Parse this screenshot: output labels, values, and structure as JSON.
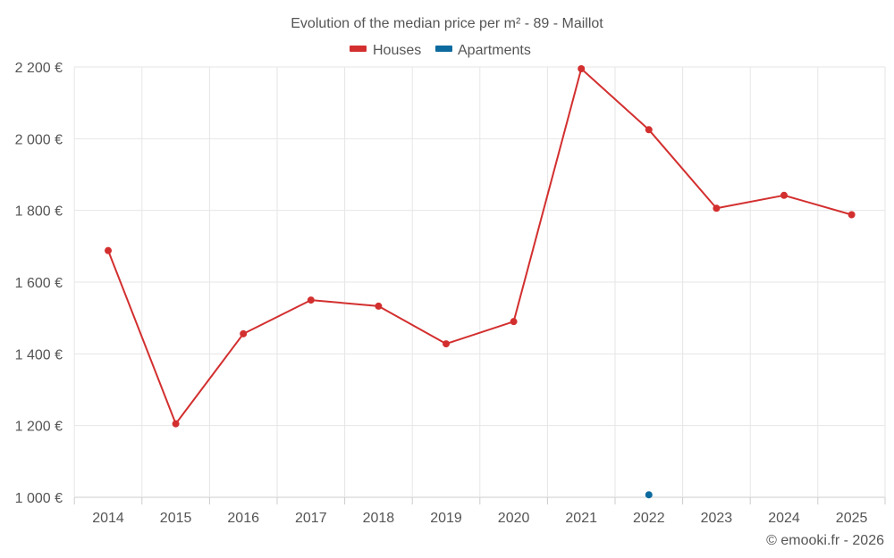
{
  "chart_data": {
    "type": "line",
    "title": "Evolution of the median price per m² - 89 - Maillot",
    "categories": [
      "2014",
      "2015",
      "2016",
      "2017",
      "2018",
      "2019",
      "2020",
      "2021",
      "2022",
      "2023",
      "2024",
      "2025"
    ],
    "ylim": [
      1000,
      2200
    ],
    "yticks": [
      1000,
      1200,
      1400,
      1600,
      1800,
      2000,
      2200
    ],
    "ytick_labels": [
      "1 000 €",
      "1 200 €",
      "1 400 €",
      "1 600 €",
      "1 800 €",
      "2 000 €",
      "2 200 €"
    ],
    "grid": true,
    "legend_position": "top-center",
    "series": [
      {
        "name": "Houses",
        "color": "#d32f2f",
        "values": [
          1688,
          1205,
          1456,
          1550,
          1533,
          1428,
          1490,
          2195,
          2025,
          1806,
          1842,
          1788
        ]
      },
      {
        "name": "Apartments",
        "color": "#0d6a9e",
        "values": [
          null,
          null,
          null,
          null,
          null,
          null,
          null,
          null,
          1007,
          null,
          null,
          null
        ]
      }
    ],
    "credit": "© emooki.fr - 2026"
  }
}
